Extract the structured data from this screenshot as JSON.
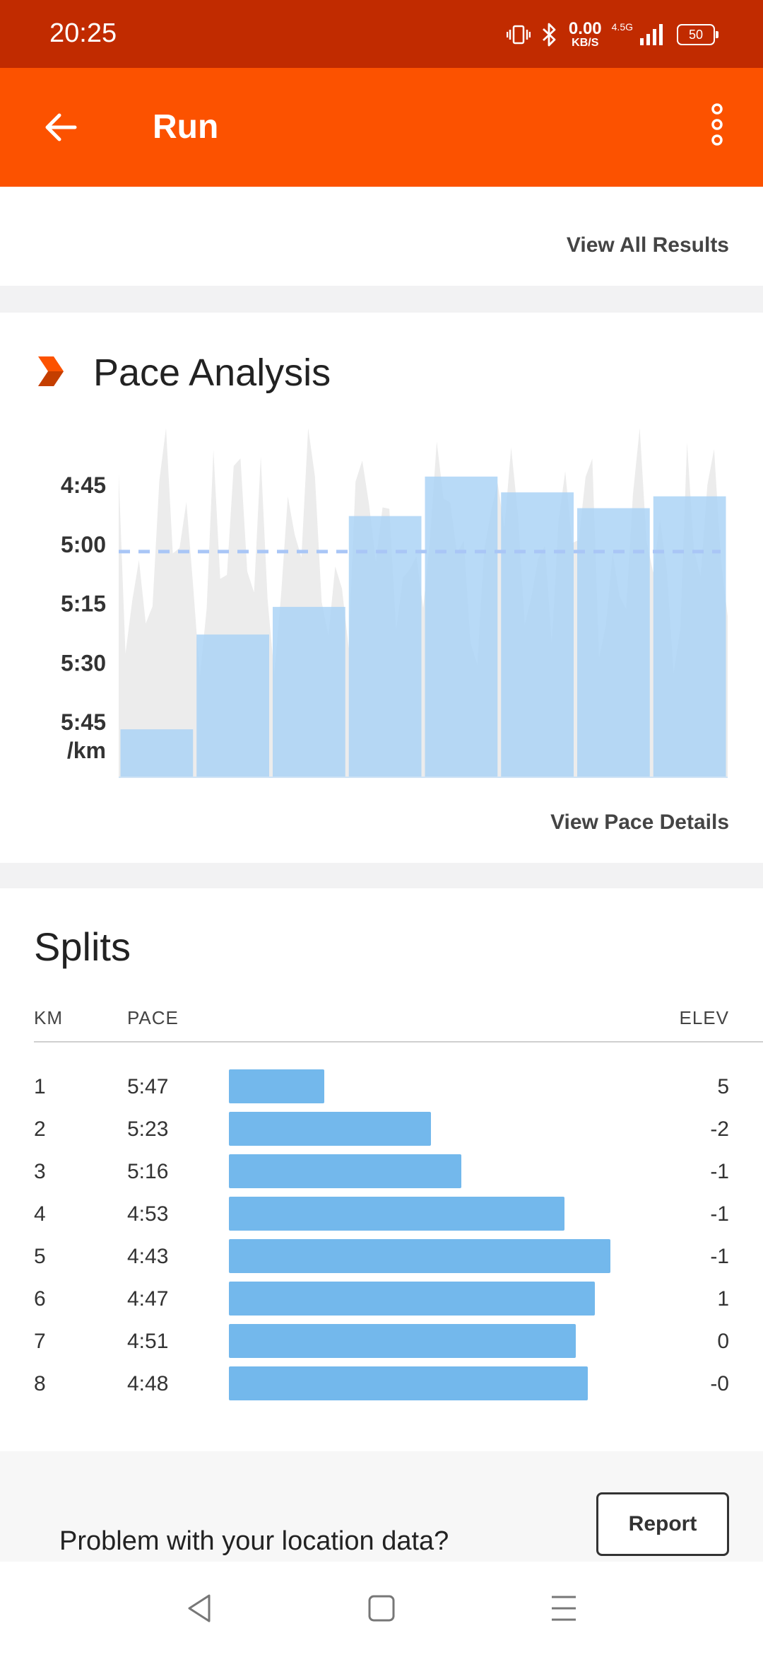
{
  "status_bar": {
    "time": "20:25",
    "net_speed": "0.00",
    "net_unit": "KB/S",
    "network_type": "4.5G",
    "battery": "50"
  },
  "app_bar": {
    "title": "Run",
    "icons": [
      "arrow-back-icon",
      "more-vert-icon"
    ]
  },
  "results": {
    "view_all_label": "View All Results"
  },
  "pace_analysis": {
    "title": "Pace Analysis",
    "icon": "chevron-badge-icon",
    "view_details_label": "View Pace Details",
    "accent_color": "#fc5200",
    "bar_color": "#a8d2f5",
    "average_line_color": "#a9c6f6",
    "chart_data": {
      "type": "bar",
      "unit_label": "/km",
      "y_ticks": [
        "4:45",
        "5:00",
        "5:15",
        "5:30",
        "5:45"
      ],
      "y_range_seconds": [
        285,
        345
      ],
      "y_inverted": true,
      "categories": [
        "1",
        "2",
        "3",
        "4",
        "5",
        "6",
        "7",
        "8"
      ],
      "values": [
        "5:47",
        "5:23",
        "5:16",
        "4:53",
        "4:43",
        "4:47",
        "4:51",
        "4:48"
      ],
      "values_seconds": [
        347,
        323,
        316,
        293,
        283,
        287,
        291,
        288
      ],
      "average_pace_seconds": 302,
      "grid": false
    }
  },
  "splits": {
    "title": "Splits",
    "headers": {
      "km": "KM",
      "pace": "PACE",
      "elev": "ELEV"
    },
    "bar_color": "#73b8ec",
    "rows": [
      {
        "km": "1",
        "pace": "5:47",
        "elev": "5",
        "speed": 0.25
      },
      {
        "km": "2",
        "pace": "5:23",
        "elev": "-2",
        "speed": 0.53
      },
      {
        "km": "3",
        "pace": "5:16",
        "elev": "-1",
        "speed": 0.61
      },
      {
        "km": "4",
        "pace": "4:53",
        "elev": "-1",
        "speed": 0.88
      },
      {
        "km": "5",
        "pace": "4:43",
        "elev": "-1",
        "speed": 1.0
      },
      {
        "km": "6",
        "pace": "4:47",
        "elev": "1",
        "speed": 0.96
      },
      {
        "km": "7",
        "pace": "4:51",
        "elev": "0",
        "speed": 0.91
      },
      {
        "km": "8",
        "pace": "4:48",
        "elev": "-0",
        "speed": 0.94
      }
    ]
  },
  "location": {
    "question": "Problem with your location data?",
    "report_label": "Report"
  },
  "nav_bar": {
    "icons": [
      "back-triangle-icon",
      "home-square-icon",
      "menu-lines-icon"
    ]
  }
}
